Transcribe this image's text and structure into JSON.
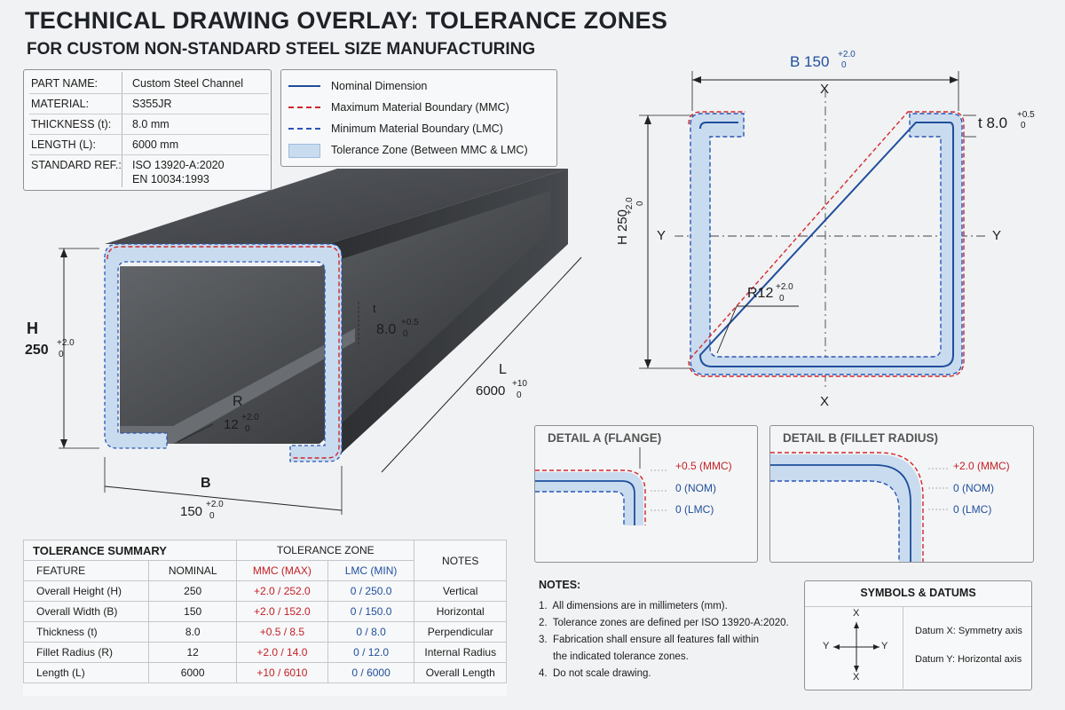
{
  "title": "TECHNICAL DRAWING OVERLAY: TOLERANCE ZONES",
  "subtitle": "FOR CUSTOM NON-STANDARD STEEL SIZE MANUFACTURING",
  "part_info": [
    {
      "key": "PART NAME:",
      "value": "Custom Steel Channel"
    },
    {
      "key": "MATERIAL:",
      "value": "S355JR"
    },
    {
      "key": "THICKNESS (t):",
      "value": "8.0 mm"
    },
    {
      "key": "LENGTH (L):",
      "value": "6000 mm"
    },
    {
      "key": "STANDARD REF.:",
      "value": "ISO 13920-A:2020",
      "value2": "EN 10034:1993"
    }
  ],
  "legend": [
    {
      "label": "Nominal Dimension",
      "style": "nominal"
    },
    {
      "label": "Maximum Material Boundary (MMC)",
      "style": "mmc"
    },
    {
      "label": "Minimum Material Boundary (LMC)",
      "style": "lmc"
    },
    {
      "label": "Tolerance Zone (Between MMC & LMC)",
      "style": "zone"
    }
  ],
  "colors": {
    "nominal": "#1f4e9c",
    "mmc": "#d0262b",
    "lmc": "#2a55b5",
    "zone": "#c9dcef",
    "steel": "#3a3c40"
  },
  "iso_labels": {
    "h": "H",
    "h_val": "250",
    "h_tol_top": "+2.0",
    "h_tol_bot": "0",
    "b": "B",
    "b_val": "150",
    "b_tol_top": "+2.0",
    "b_tol_bot": "0",
    "t": "t",
    "t_val": "8.0",
    "t_tol_top": "+0.5",
    "t_tol_bot": "0",
    "r": "R",
    "r_val": "12",
    "r_tol_top": "+2.0",
    "r_tol_bot": "0",
    "l": "L",
    "l_val": "6000",
    "l_tol_top": "+10",
    "l_tol_bot": "0"
  },
  "section_labels": {
    "b": "B 150",
    "b_tol_top": "+2.0",
    "b_tol_bot": "0",
    "h": "H 250",
    "h_tol_top": "+2.0",
    "h_tol_bot": "0",
    "t": "t 8.0",
    "t_tol_top": "+0.5",
    "t_tol_bot": "0",
    "r": "R12",
    "r_tol_top": "+2.0",
    "r_tol_bot": "0",
    "x": "X",
    "y": "Y"
  },
  "detail_a": {
    "title": "DETAIL A (FLANGE)",
    "mmc": "+0.5 (MMC)",
    "nom": "0 (NOM)",
    "lmc": "0 (LMC)"
  },
  "detail_b": {
    "title": "DETAIL B (FILLET RADIUS)",
    "mmc": "+2.0 (MMC)",
    "nom": "0 (NOM)",
    "lmc": "0 (LMC)"
  },
  "tolerance_summary": {
    "title": "TOLERANCE SUMMARY",
    "group_header": "TOLERANCE ZONE",
    "headers": [
      "FEATURE",
      "NOMINAL",
      "MMC (MAX)",
      "LMC (MIN)",
      "NOTES"
    ],
    "rows": [
      [
        "Overall Height (H)",
        "250",
        "+2.0 / 252.0",
        "0 / 250.0",
        "Vertical"
      ],
      [
        "Overall Width (B)",
        "150",
        "+2.0 / 152.0",
        "0 / 150.0",
        "Horizontal"
      ],
      [
        "Thickness (t)",
        "8.0",
        "+0.5 / 8.5",
        "0 / 8.0",
        "Perpendicular"
      ],
      [
        "Fillet Radius (R)",
        "12",
        "+2.0 / 14.0",
        "0 / 12.0",
        "Internal Radius"
      ],
      [
        "Length (L)",
        "6000",
        "+10 / 6010",
        "0 / 6000",
        "Overall Length"
      ]
    ]
  },
  "notes": {
    "title": "NOTES:",
    "items": [
      "1.  All dimensions are in millimeters (mm).",
      "2.  Tolerance zones are defined per ISO 13920-A:2020.",
      "3.  Fabrication shall ensure all features fall within",
      "     the indicated tolerance zones.",
      "4.  Do not scale drawing."
    ]
  },
  "symbols": {
    "title": "SYMBOLS & DATUMS",
    "datum_x": "Datum X: Symmetry axis",
    "datum_y": "Datum Y: Horizontal axis",
    "x": "X",
    "y": "Y"
  }
}
